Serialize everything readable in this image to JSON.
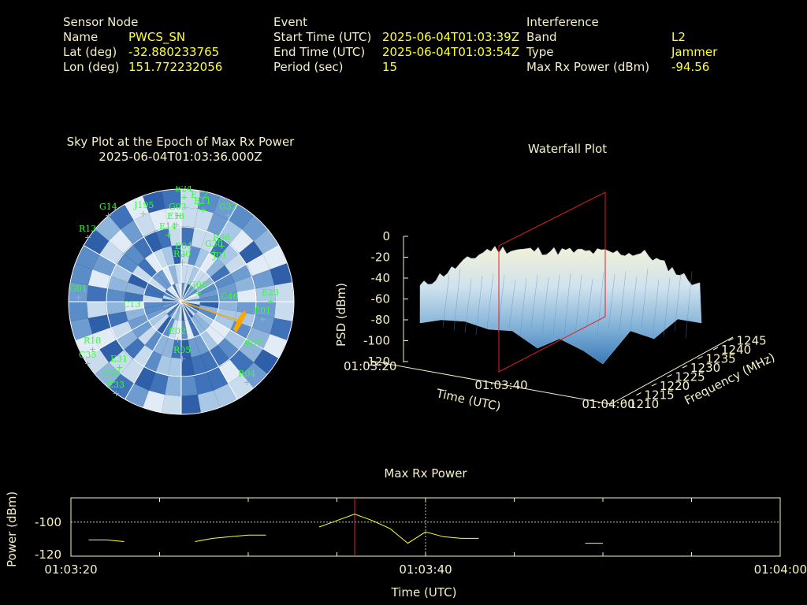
{
  "header": {
    "sensor": {
      "section": "Sensor Node",
      "name_label": "Name",
      "name": "PWCS_SN",
      "lat_label": "Lat (deg)",
      "lat": "-32.880233765",
      "lon_label": "Lon (deg)",
      "lon": "151.772232056"
    },
    "event": {
      "section": "Event",
      "start_label": "Start Time (UTC)",
      "start": "2025-06-04T01:03:39Z",
      "end_label": "End Time (UTC)",
      "end": "2025-06-04T01:03:54Z",
      "period_label": "Period (sec)",
      "period": "15"
    },
    "interference": {
      "section": "Interference",
      "band_label": "Band",
      "band": "L2",
      "type_label": "Type",
      "type": "Jammer",
      "power_label": "Max Rx Power (dBm)",
      "power": "-94.56"
    }
  },
  "sky": {
    "title": "Sky Plot at the Epoch of Max Rx Power",
    "epoch": "2025-06-04T01:03:36.000Z",
    "satellites": [
      "E24",
      "E12",
      "G32",
      "G14",
      "J195",
      "G03",
      "E11",
      "E18",
      "E14",
      "R13",
      "R06",
      "R20",
      "E04",
      "G30",
      "G08",
      "C46",
      "J01",
      "G01",
      "C13",
      "E23",
      "E01",
      "R18",
      "E02",
      "C35",
      "E31",
      "R05",
      "R07",
      "G20",
      "E33",
      "R04"
    ]
  },
  "waterfall": {
    "title": "Waterfall Plot",
    "zlabel": "PSD (dBm)",
    "xlabel": "Time (UTC)",
    "ylabel": "Frequency (MHz)",
    "z_ticks": [
      "0",
      "-20",
      "-40",
      "-60",
      "-80",
      "-100",
      "-120"
    ],
    "t_ticks": [
      "01:03:20",
      "01:03:40",
      "01:04:00"
    ],
    "f_ticks": [
      "1210",
      "1215",
      "1220",
      "1225",
      "1230",
      "1235",
      "1240",
      "1245"
    ]
  },
  "chart_data": {
    "type": "line",
    "title": "Max Rx Power",
    "xlabel": "Time (UTC)",
    "ylabel": "Power (dBm)",
    "x_tick_labels": [
      "01:03:20",
      "01:03:40",
      "01:04:00"
    ],
    "y_tick_labels": [
      "-100",
      "-120"
    ],
    "xlim_sec": [
      0,
      40
    ],
    "ylim": [
      -121,
      -85
    ],
    "grid": true,
    "event_marker_sec": 16,
    "series": [
      {
        "color": "#ffff33",
        "segments": [
          [
            [
              1,
              -111
            ],
            [
              2,
              -111
            ],
            [
              3,
              -112
            ]
          ],
          [
            [
              7,
              -112
            ],
            [
              8,
              -110
            ],
            [
              9,
              -109
            ],
            [
              10,
              -108
            ],
            [
              11,
              -108
            ]
          ],
          [
            [
              14,
              -103
            ],
            [
              15,
              -99
            ],
            [
              16,
              -95
            ],
            [
              17,
              -99
            ],
            [
              18,
              -104
            ],
            [
              19,
              -113
            ],
            [
              20,
              -106
            ],
            [
              21,
              -109
            ],
            [
              22,
              -110
            ],
            [
              23,
              -110
            ]
          ],
          [
            [
              29,
              -113
            ],
            [
              30,
              -113
            ]
          ]
        ]
      }
    ]
  }
}
